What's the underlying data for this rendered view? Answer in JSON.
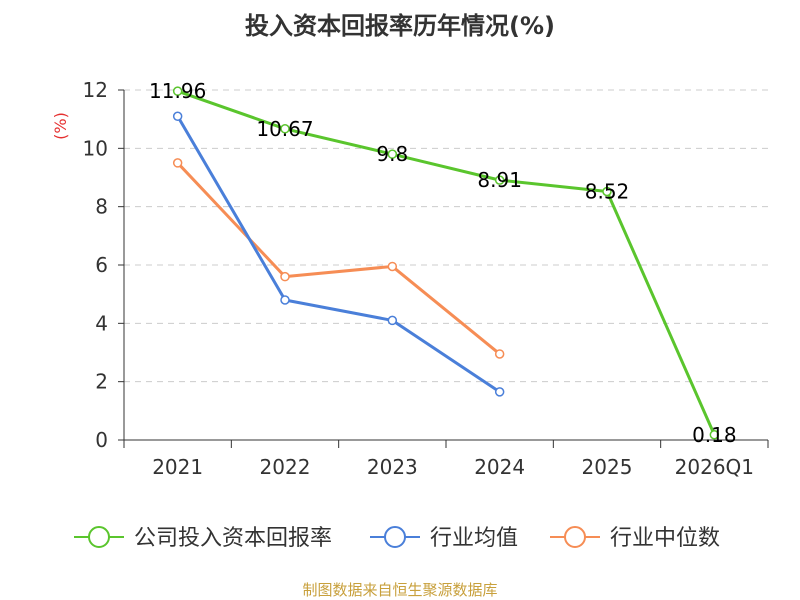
{
  "chart_data": {
    "type": "line",
    "title": "投入资本回报率历年情况(%)",
    "ylabel": "(%)",
    "xlabel": "",
    "categories": [
      "2021",
      "2022",
      "2023",
      "2024",
      "2025",
      "2026Q1"
    ],
    "ylim": [
      0,
      12
    ],
    "yticks": [
      0,
      2,
      4,
      6,
      8,
      10,
      12
    ],
    "grid": true,
    "legend_position": "bottom",
    "series": [
      {
        "name": "公司投入资本回报率",
        "color": "#5ac52d",
        "values": [
          11.96,
          10.67,
          9.8,
          8.91,
          8.52,
          0.18
        ],
        "labels": [
          "11.96",
          "10.67",
          "9.8",
          "8.91",
          "8.52",
          "0.18"
        ]
      },
      {
        "name": "行业均值",
        "color": "#4a7fd9",
        "values": [
          11.1,
          4.8,
          4.1,
          1.65,
          null,
          null
        ]
      },
      {
        "name": "行业中位数",
        "color": "#f68d55",
        "values": [
          9.5,
          5.6,
          5.95,
          2.95,
          null,
          null
        ]
      }
    ]
  },
  "source_note": "制图数据来自恒生聚源数据库"
}
